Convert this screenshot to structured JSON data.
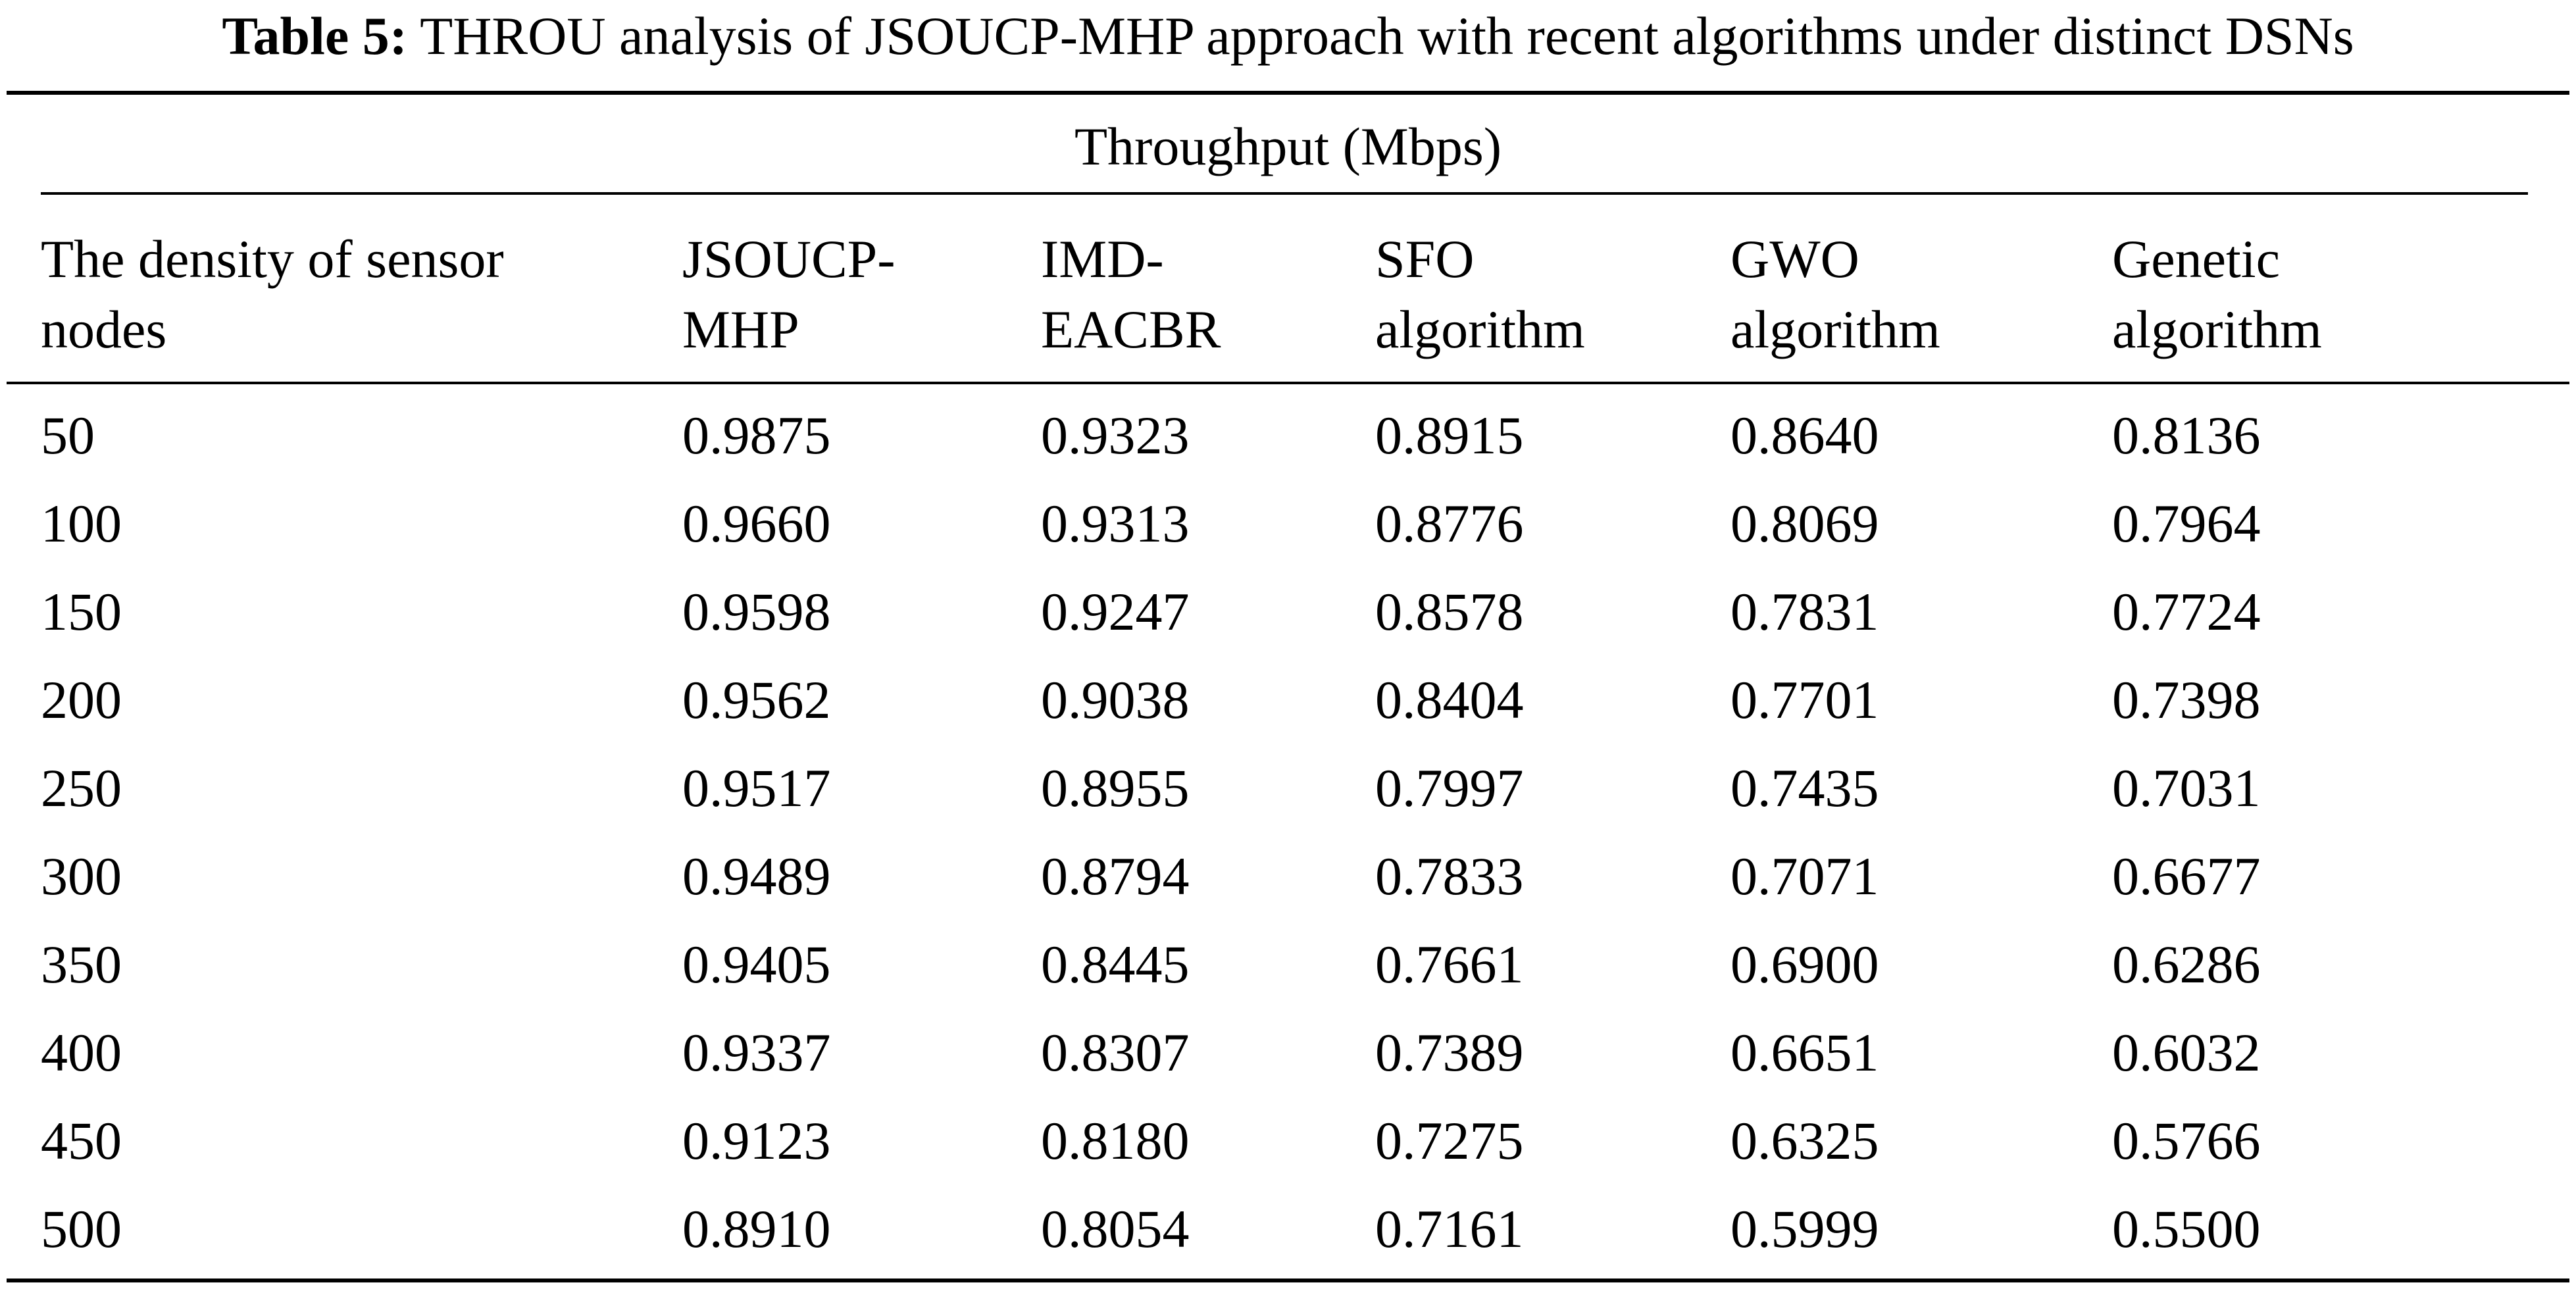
{
  "caption": {
    "label": "Table 5:",
    "text": "THROU analysis of JSOUCP-MHP approach with recent algorithms under distinct DSNs"
  },
  "table": {
    "group_header": "Throughput (Mbps)",
    "columns": [
      [
        "The density of sensor",
        "nodes"
      ],
      [
        "JSOUCP-",
        "MHP"
      ],
      [
        "IMD-",
        "EACBR"
      ],
      [
        "SFO",
        "algorithm"
      ],
      [
        "GWO",
        "algorithm"
      ],
      [
        "Genetic",
        "algorithm"
      ]
    ],
    "rows": [
      [
        "50",
        "0.9875",
        "0.9323",
        "0.8915",
        "0.8640",
        "0.8136"
      ],
      [
        "100",
        "0.9660",
        "0.9313",
        "0.8776",
        "0.8069",
        "0.7964"
      ],
      [
        "150",
        "0.9598",
        "0.9247",
        "0.8578",
        "0.7831",
        "0.7724"
      ],
      [
        "200",
        "0.9562",
        "0.9038",
        "0.8404",
        "0.7701",
        "0.7398"
      ],
      [
        "250",
        "0.9517",
        "0.8955",
        "0.7997",
        "0.7435",
        "0.7031"
      ],
      [
        "300",
        "0.9489",
        "0.8794",
        "0.7833",
        "0.7071",
        "0.6677"
      ],
      [
        "350",
        "0.9405",
        "0.8445",
        "0.7661",
        "0.6900",
        "0.6286"
      ],
      [
        "400",
        "0.9337",
        "0.8307",
        "0.7389",
        "0.6651",
        "0.6032"
      ],
      [
        "450",
        "0.9123",
        "0.8180",
        "0.7275",
        "0.6325",
        "0.5766"
      ],
      [
        "500",
        "0.8910",
        "0.8054",
        "0.7161",
        "0.5999",
        "0.5500"
      ]
    ]
  }
}
